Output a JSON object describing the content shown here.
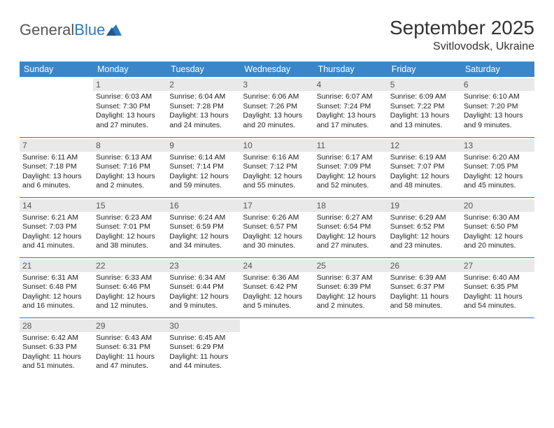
{
  "logo": {
    "part1": "General",
    "part2": "Blue"
  },
  "title": "September 2025",
  "subtitle": "Svitlovodsk, Ukraine",
  "colors": {
    "header_bg": "#3a86c8",
    "header_text": "#ffffff",
    "day_strip_bg": "#e9e9e9",
    "rule": "#2f78bd",
    "logo_blue": "#2f78bd",
    "text": "#222222"
  },
  "day_headers": [
    "Sunday",
    "Monday",
    "Tuesday",
    "Wednesday",
    "Thursday",
    "Friday",
    "Saturday"
  ],
  "weeks": [
    [
      {
        "n": "",
        "sunrise": "",
        "sunset": "",
        "daylight": ""
      },
      {
        "n": "1",
        "sunrise": "Sunrise: 6:03 AM",
        "sunset": "Sunset: 7:30 PM",
        "daylight": "Daylight: 13 hours and 27 minutes."
      },
      {
        "n": "2",
        "sunrise": "Sunrise: 6:04 AM",
        "sunset": "Sunset: 7:28 PM",
        "daylight": "Daylight: 13 hours and 24 minutes."
      },
      {
        "n": "3",
        "sunrise": "Sunrise: 6:06 AM",
        "sunset": "Sunset: 7:26 PM",
        "daylight": "Daylight: 13 hours and 20 minutes."
      },
      {
        "n": "4",
        "sunrise": "Sunrise: 6:07 AM",
        "sunset": "Sunset: 7:24 PM",
        "daylight": "Daylight: 13 hours and 17 minutes."
      },
      {
        "n": "5",
        "sunrise": "Sunrise: 6:09 AM",
        "sunset": "Sunset: 7:22 PM",
        "daylight": "Daylight: 13 hours and 13 minutes."
      },
      {
        "n": "6",
        "sunrise": "Sunrise: 6:10 AM",
        "sunset": "Sunset: 7:20 PM",
        "daylight": "Daylight: 13 hours and 9 minutes."
      }
    ],
    [
      {
        "n": "7",
        "sunrise": "Sunrise: 6:11 AM",
        "sunset": "Sunset: 7:18 PM",
        "daylight": "Daylight: 13 hours and 6 minutes."
      },
      {
        "n": "8",
        "sunrise": "Sunrise: 6:13 AM",
        "sunset": "Sunset: 7:16 PM",
        "daylight": "Daylight: 13 hours and 2 minutes."
      },
      {
        "n": "9",
        "sunrise": "Sunrise: 6:14 AM",
        "sunset": "Sunset: 7:14 PM",
        "daylight": "Daylight: 12 hours and 59 minutes."
      },
      {
        "n": "10",
        "sunrise": "Sunrise: 6:16 AM",
        "sunset": "Sunset: 7:12 PM",
        "daylight": "Daylight: 12 hours and 55 minutes."
      },
      {
        "n": "11",
        "sunrise": "Sunrise: 6:17 AM",
        "sunset": "Sunset: 7:09 PM",
        "daylight": "Daylight: 12 hours and 52 minutes."
      },
      {
        "n": "12",
        "sunrise": "Sunrise: 6:19 AM",
        "sunset": "Sunset: 7:07 PM",
        "daylight": "Daylight: 12 hours and 48 minutes."
      },
      {
        "n": "13",
        "sunrise": "Sunrise: 6:20 AM",
        "sunset": "Sunset: 7:05 PM",
        "daylight": "Daylight: 12 hours and 45 minutes."
      }
    ],
    [
      {
        "n": "14",
        "sunrise": "Sunrise: 6:21 AM",
        "sunset": "Sunset: 7:03 PM",
        "daylight": "Daylight: 12 hours and 41 minutes."
      },
      {
        "n": "15",
        "sunrise": "Sunrise: 6:23 AM",
        "sunset": "Sunset: 7:01 PM",
        "daylight": "Daylight: 12 hours and 38 minutes."
      },
      {
        "n": "16",
        "sunrise": "Sunrise: 6:24 AM",
        "sunset": "Sunset: 6:59 PM",
        "daylight": "Daylight: 12 hours and 34 minutes."
      },
      {
        "n": "17",
        "sunrise": "Sunrise: 6:26 AM",
        "sunset": "Sunset: 6:57 PM",
        "daylight": "Daylight: 12 hours and 30 minutes."
      },
      {
        "n": "18",
        "sunrise": "Sunrise: 6:27 AM",
        "sunset": "Sunset: 6:54 PM",
        "daylight": "Daylight: 12 hours and 27 minutes."
      },
      {
        "n": "19",
        "sunrise": "Sunrise: 6:29 AM",
        "sunset": "Sunset: 6:52 PM",
        "daylight": "Daylight: 12 hours and 23 minutes."
      },
      {
        "n": "20",
        "sunrise": "Sunrise: 6:30 AM",
        "sunset": "Sunset: 6:50 PM",
        "daylight": "Daylight: 12 hours and 20 minutes."
      }
    ],
    [
      {
        "n": "21",
        "sunrise": "Sunrise: 6:31 AM",
        "sunset": "Sunset: 6:48 PM",
        "daylight": "Daylight: 12 hours and 16 minutes."
      },
      {
        "n": "22",
        "sunrise": "Sunrise: 6:33 AM",
        "sunset": "Sunset: 6:46 PM",
        "daylight": "Daylight: 12 hours and 12 minutes."
      },
      {
        "n": "23",
        "sunrise": "Sunrise: 6:34 AM",
        "sunset": "Sunset: 6:44 PM",
        "daylight": "Daylight: 12 hours and 9 minutes."
      },
      {
        "n": "24",
        "sunrise": "Sunrise: 6:36 AM",
        "sunset": "Sunset: 6:42 PM",
        "daylight": "Daylight: 12 hours and 5 minutes."
      },
      {
        "n": "25",
        "sunrise": "Sunrise: 6:37 AM",
        "sunset": "Sunset: 6:39 PM",
        "daylight": "Daylight: 12 hours and 2 minutes."
      },
      {
        "n": "26",
        "sunrise": "Sunrise: 6:39 AM",
        "sunset": "Sunset: 6:37 PM",
        "daylight": "Daylight: 11 hours and 58 minutes."
      },
      {
        "n": "27",
        "sunrise": "Sunrise: 6:40 AM",
        "sunset": "Sunset: 6:35 PM",
        "daylight": "Daylight: 11 hours and 54 minutes."
      }
    ],
    [
      {
        "n": "28",
        "sunrise": "Sunrise: 6:42 AM",
        "sunset": "Sunset: 6:33 PM",
        "daylight": "Daylight: 11 hours and 51 minutes."
      },
      {
        "n": "29",
        "sunrise": "Sunrise: 6:43 AM",
        "sunset": "Sunset: 6:31 PM",
        "daylight": "Daylight: 11 hours and 47 minutes."
      },
      {
        "n": "30",
        "sunrise": "Sunrise: 6:45 AM",
        "sunset": "Sunset: 6:29 PM",
        "daylight": "Daylight: 11 hours and 44 minutes."
      },
      {
        "n": "",
        "sunrise": "",
        "sunset": "",
        "daylight": ""
      },
      {
        "n": "",
        "sunrise": "",
        "sunset": "",
        "daylight": ""
      },
      {
        "n": "",
        "sunrise": "",
        "sunset": "",
        "daylight": ""
      },
      {
        "n": "",
        "sunrise": "",
        "sunset": "",
        "daylight": ""
      }
    ]
  ]
}
